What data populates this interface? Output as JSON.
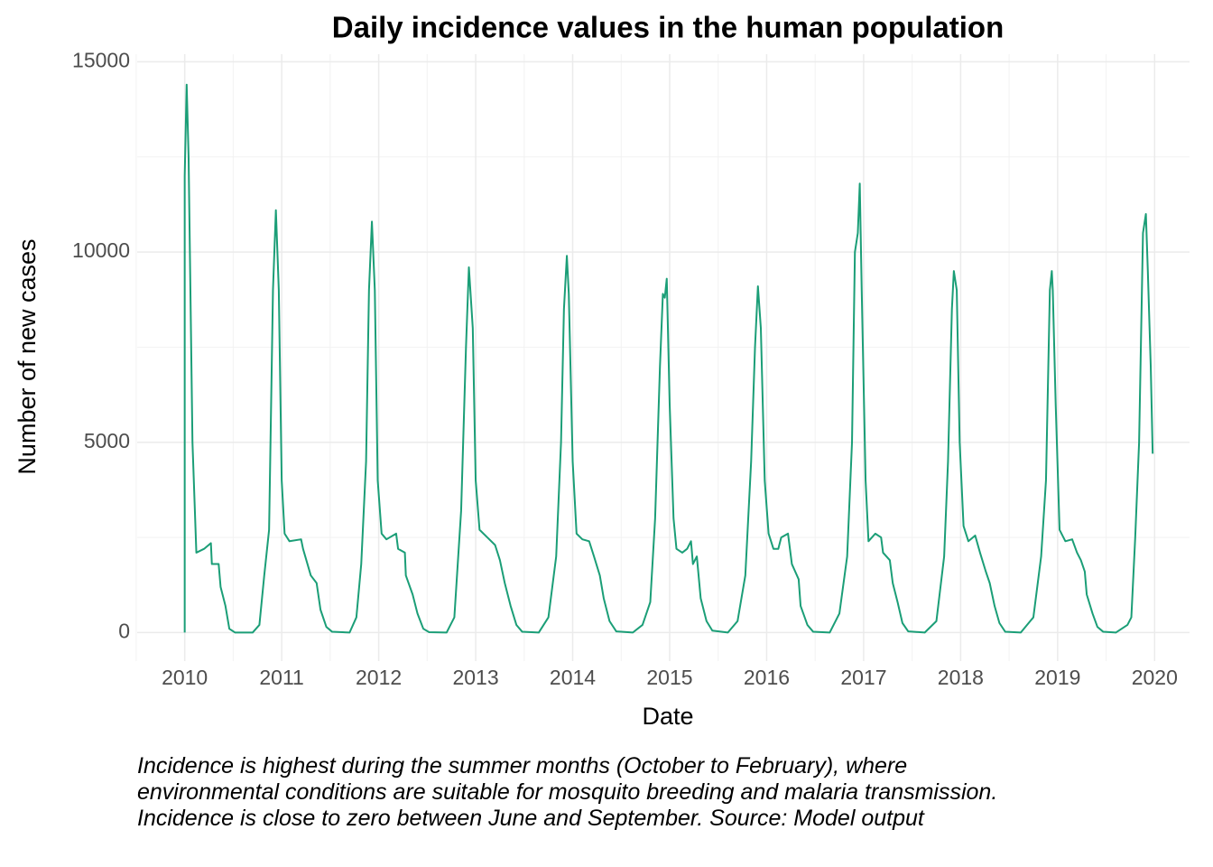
{
  "chart_data": {
    "type": "line",
    "title": "Daily incidence values in the human population",
    "x_label": "Date",
    "y_label": "Number of new cases",
    "caption": "Incidence is highest during the summer months (October to February), where environmental conditions are suitable for mosquito breeding and malaria transmission. Incidence is close to zero between June and September. Source: Model output",
    "color": "#1b9e77",
    "grid": true,
    "xlim": [
      2009.51,
      2020.36
    ],
    "xticks": [
      2010,
      2011,
      2012,
      2013,
      2014,
      2015,
      2016,
      2017,
      2018,
      2019,
      2020
    ],
    "ylim": [
      -750,
      15200
    ],
    "yticks": [
      0,
      5000,
      10000,
      15000
    ],
    "x": [
      2010.0,
      2010.0,
      2010.02,
      2010.04,
      2010.08,
      2010.12,
      2010.2,
      2010.27,
      2010.28,
      2010.35,
      2010.37,
      2010.42,
      2010.46,
      2010.52,
      2010.7,
      2010.77,
      2010.82,
      2010.87,
      2010.91,
      2010.94,
      2010.97,
      2011.0,
      2011.03,
      2011.08,
      2011.2,
      2011.22,
      2011.3,
      2011.36,
      2011.4,
      2011.46,
      2011.52,
      2011.7,
      2011.77,
      2011.82,
      2011.87,
      2011.9,
      2011.93,
      2011.96,
      2011.99,
      2012.03,
      2012.08,
      2012.18,
      2012.2,
      2012.27,
      2012.28,
      2012.35,
      2012.4,
      2012.46,
      2012.52,
      2012.7,
      2012.78,
      2012.85,
      2012.9,
      2012.93,
      2012.97,
      2013.0,
      2013.04,
      2013.12,
      2013.2,
      2013.25,
      2013.3,
      2013.36,
      2013.42,
      2013.48,
      2013.65,
      2013.75,
      2013.83,
      2013.88,
      2013.91,
      2013.94,
      2013.96,
      2014.0,
      2014.04,
      2014.1,
      2014.17,
      2014.22,
      2014.28,
      2014.32,
      2014.38,
      2014.45,
      2014.62,
      2014.72,
      2014.8,
      2014.85,
      2014.9,
      2014.93,
      2014.95,
      2014.97,
      2015.0,
      2015.04,
      2015.07,
      2015.13,
      2015.18,
      2015.22,
      2015.24,
      2015.28,
      2015.32,
      2015.38,
      2015.44,
      2015.6,
      2015.7,
      2015.78,
      2015.84,
      2015.88,
      2015.91,
      2015.94,
      2015.98,
      2016.02,
      2016.07,
      2016.12,
      2016.15,
      2016.22,
      2016.26,
      2016.33,
      2016.35,
      2016.42,
      2016.48,
      2016.65,
      2016.75,
      2016.83,
      2016.88,
      2016.91,
      2016.94,
      2016.96,
      2016.98,
      2017.02,
      2017.05,
      2017.12,
      2017.18,
      2017.2,
      2017.27,
      2017.3,
      2017.35,
      2017.4,
      2017.46,
      2017.63,
      2017.75,
      2017.83,
      2017.87,
      2017.91,
      2017.93,
      2017.96,
      2017.99,
      2018.03,
      2018.08,
      2018.15,
      2018.2,
      2018.26,
      2018.3,
      2018.35,
      2018.4,
      2018.46,
      2018.62,
      2018.75,
      2018.83,
      2018.88,
      2018.92,
      2018.94,
      2018.95,
      2018.98,
      2019.02,
      2019.08,
      2019.15,
      2019.2,
      2019.24,
      2019.28,
      2019.3,
      2019.36,
      2019.41,
      2019.47,
      2019.6,
      2019.72,
      2019.76,
      2019.8,
      2019.84,
      2019.88,
      2019.91,
      2019.93,
      2019.96,
      2019.98
    ],
    "values": [
      0,
      12000,
      14400,
      12500,
      5000,
      2100,
      2200,
      2350,
      1800,
      1800,
      1200,
      700,
      100,
      0,
      0,
      200,
      1500,
      2700,
      9000,
      11100,
      9000,
      4000,
      2600,
      2400,
      2450,
      2200,
      1500,
      1300,
      600,
      150,
      20,
      0,
      400,
      1800,
      4500,
      9000,
      10800,
      9000,
      4000,
      2600,
      2450,
      2600,
      2200,
      2100,
      1500,
      1000,
      500,
      100,
      10,
      0,
      400,
      3200,
      7500,
      9600,
      8000,
      4000,
      2700,
      2500,
      2300,
      1900,
      1300,
      700,
      200,
      20,
      0,
      400,
      2000,
      5000,
      8500,
      9900,
      8900,
      4500,
      2600,
      2450,
      2400,
      2000,
      1500,
      900,
      300,
      30,
      0,
      200,
      800,
      3000,
      7000,
      8900,
      8800,
      9300,
      6000,
      3000,
      2200,
      2100,
      2200,
      2400,
      1800,
      2000,
      900,
      300,
      50,
      0,
      300,
      1500,
      4500,
      7500,
      9100,
      8000,
      4000,
      2600,
      2200,
      2200,
      2500,
      2600,
      1800,
      1400,
      700,
      200,
      20,
      0,
      500,
      2000,
      5000,
      10000,
      10500,
      11800,
      9000,
      4000,
      2400,
      2600,
      2500,
      2100,
      1900,
      1300,
      800,
      250,
      30,
      0,
      300,
      2000,
      4500,
      8500,
      9500,
      9000,
      5000,
      2800,
      2400,
      2550,
      2100,
      1600,
      1300,
      700,
      250,
      20,
      0,
      400,
      2000,
      4000,
      9000,
      9500,
      9000,
      6000,
      2700,
      2400,
      2450,
      2100,
      1900,
      1600,
      1000,
      500,
      150,
      20,
      0,
      200,
      400,
      2500,
      5000,
      10500,
      11000,
      9500,
      7000,
      4700
    ]
  }
}
